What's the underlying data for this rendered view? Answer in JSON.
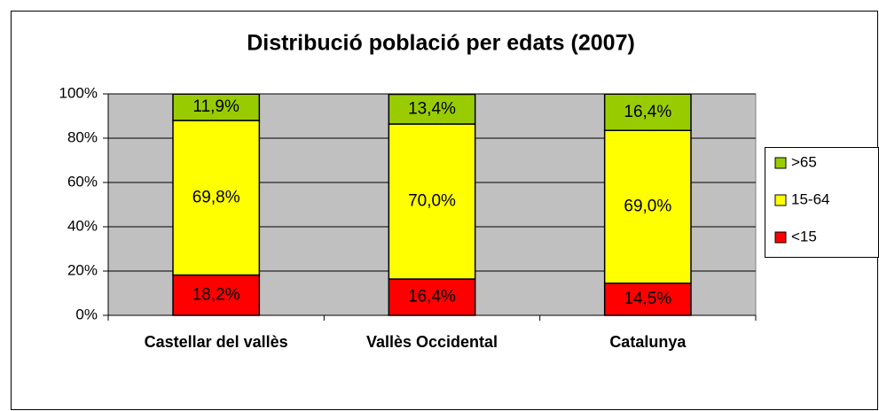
{
  "chart_data": {
    "type": "stacked_bar",
    "title": "Distribució població per edats (2007)",
    "categories": [
      "Castellar del vallès",
      "Vallès Occidental",
      "Catalunya"
    ],
    "series": [
      {
        "name": "<15",
        "color": "#ff0000",
        "values": [
          18.2,
          16.4,
          14.5
        ],
        "value_labels": [
          "18,2%",
          "16,4%",
          "14,5%"
        ]
      },
      {
        "name": "15-64",
        "color": "#ffff00",
        "values": [
          69.8,
          70.0,
          69.0
        ],
        "value_labels": [
          "69,8%",
          "70,0%",
          "69,0%"
        ]
      },
      {
        "name": ">65",
        "color": "#99cc00",
        "values": [
          11.9,
          13.4,
          16.4
        ],
        "value_labels": [
          "11,9%",
          "13,4%",
          "16,4%"
        ]
      }
    ],
    "ylim": [
      0,
      100
    ],
    "yticks": [
      {
        "value": 0,
        "label": "0%"
      },
      {
        "value": 20,
        "label": "20%"
      },
      {
        "value": 40,
        "label": "40%"
      },
      {
        "value": 60,
        "label": "60%"
      },
      {
        "value": 80,
        "label": "80%"
      },
      {
        "value": 100,
        "label": "100%"
      }
    ],
    "grid": true,
    "legend": "right"
  }
}
